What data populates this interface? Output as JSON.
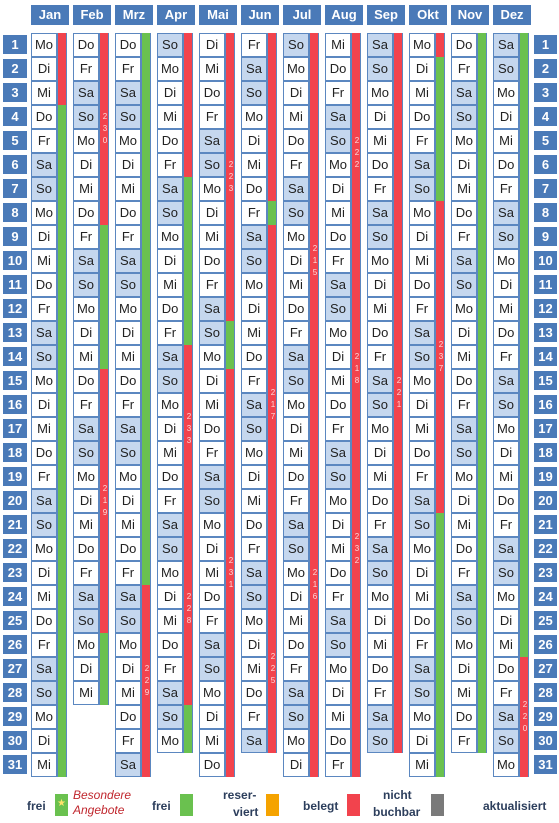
{
  "months": [
    {
      "name": "Jan",
      "start": 0,
      "days": 31
    },
    {
      "name": "Feb",
      "start": 3,
      "days": 28
    },
    {
      "name": "Mrz",
      "start": 3,
      "days": 31
    },
    {
      "name": "Apr",
      "start": 6,
      "days": 30
    },
    {
      "name": "Mai",
      "start": 1,
      "days": 31
    },
    {
      "name": "Jun",
      "start": 4,
      "days": 30
    },
    {
      "name": "Jul",
      "start": 6,
      "days": 31
    },
    {
      "name": "Aug",
      "start": 2,
      "days": 31
    },
    {
      "name": "Sep",
      "start": 5,
      "days": 30
    },
    {
      "name": "Okt",
      "start": 0,
      "days": 31
    },
    {
      "name": "Nov",
      "start": 3,
      "days": 30
    },
    {
      "name": "Dez",
      "start": 5,
      "days": 31
    }
  ],
  "weekday_names": [
    "Mo",
    "Di",
    "Mi",
    "Do",
    "Fr",
    "Sa",
    "So"
  ],
  "day_numbers": [
    "1",
    "2",
    "3",
    "4",
    "5",
    "6",
    "7",
    "8",
    "9",
    "10",
    "11",
    "12",
    "13",
    "14",
    "15",
    "16",
    "17",
    "18",
    "19",
    "20",
    "21",
    "22",
    "23",
    "24",
    "25",
    "26",
    "27",
    "28",
    "29",
    "30",
    "31"
  ],
  "status_bars": [
    [
      {
        "s": "red",
        "from": 1,
        "to": 3
      },
      {
        "s": "green",
        "from": 4,
        "to": 31
      }
    ],
    [
      {
        "s": "red",
        "from": 1,
        "to": 8,
        "label": "230"
      },
      {
        "s": "green",
        "from": 9,
        "to": 14
      },
      {
        "s": "red",
        "from": 15,
        "to": 25,
        "label": "219"
      },
      {
        "s": "green",
        "from": 26,
        "to": 28
      }
    ],
    [
      {
        "s": "green",
        "from": 1,
        "to": 23
      },
      {
        "s": "red",
        "from": 24,
        "to": 31,
        "label": "229"
      }
    ],
    [
      {
        "s": "red",
        "from": 1,
        "to": 6
      },
      {
        "s": "green",
        "from": 7,
        "to": 13
      },
      {
        "s": "red",
        "from": 14,
        "to": 20,
        "label": "233"
      },
      {
        "s": "red",
        "from": 21,
        "to": 28,
        "label": "228"
      },
      {
        "s": "green",
        "from": 29,
        "to": 30
      }
    ],
    [
      {
        "s": "red",
        "from": 1,
        "to": 12,
        "label": "223"
      },
      {
        "s": "green",
        "from": 13,
        "to": 14
      },
      {
        "s": "red",
        "from": 15,
        "to": 31,
        "label": "231"
      }
    ],
    [
      {
        "s": "red",
        "from": 1,
        "to": 7
      },
      {
        "s": "green",
        "from": 8,
        "to": 8
      },
      {
        "s": "red",
        "from": 9,
        "to": 23,
        "label": "217"
      },
      {
        "s": "red",
        "from": 24,
        "to": 30,
        "label": "225"
      }
    ],
    [
      {
        "s": "red",
        "from": 1,
        "to": 4
      },
      {
        "s": "red",
        "from": 5,
        "to": 15,
        "label": "215"
      },
      {
        "s": "red",
        "from": 16,
        "to": 31,
        "label": "216"
      }
    ],
    [
      {
        "s": "red",
        "from": 1,
        "to": 10,
        "label": "222"
      },
      {
        "s": "red",
        "from": 11,
        "to": 18,
        "label": "218"
      },
      {
        "s": "red",
        "from": 19,
        "to": 25,
        "label": "232"
      },
      {
        "s": "red",
        "from": 26,
        "to": 31
      }
    ],
    [
      {
        "s": "red",
        "from": 1,
        "to": 30,
        "label": "221"
      }
    ],
    [
      {
        "s": "red",
        "from": 1,
        "to": 1
      },
      {
        "s": "green",
        "from": 2,
        "to": 7
      },
      {
        "s": "red",
        "from": 8,
        "to": 20,
        "label": "237"
      },
      {
        "s": "green",
        "from": 21,
        "to": 31
      }
    ],
    [
      {
        "s": "green",
        "from": 1,
        "to": 30
      }
    ],
    [
      {
        "s": "green",
        "from": 1,
        "to": 26
      },
      {
        "s": "red",
        "from": 27,
        "to": 31,
        "label": "220"
      }
    ]
  ],
  "legend": {
    "frei_label": "frei",
    "special_line1": "Besondere",
    "special_line2": "Angebote",
    "frei2_label": "frei",
    "reserved_line1": "reser-",
    "reserved_line2": "viert",
    "booked_label": "belegt",
    "notbookable_line1": "nicht",
    "notbookable_line2": "buchbar",
    "updated_label": "aktualisiert"
  },
  "colors": {
    "header": "#4a7ab8",
    "weekend": "#c5d7ee",
    "free": "#6ac14f",
    "booked": "#f2434d",
    "reserved": "#f5a300",
    "not_bookable": "#7a7a7a"
  }
}
